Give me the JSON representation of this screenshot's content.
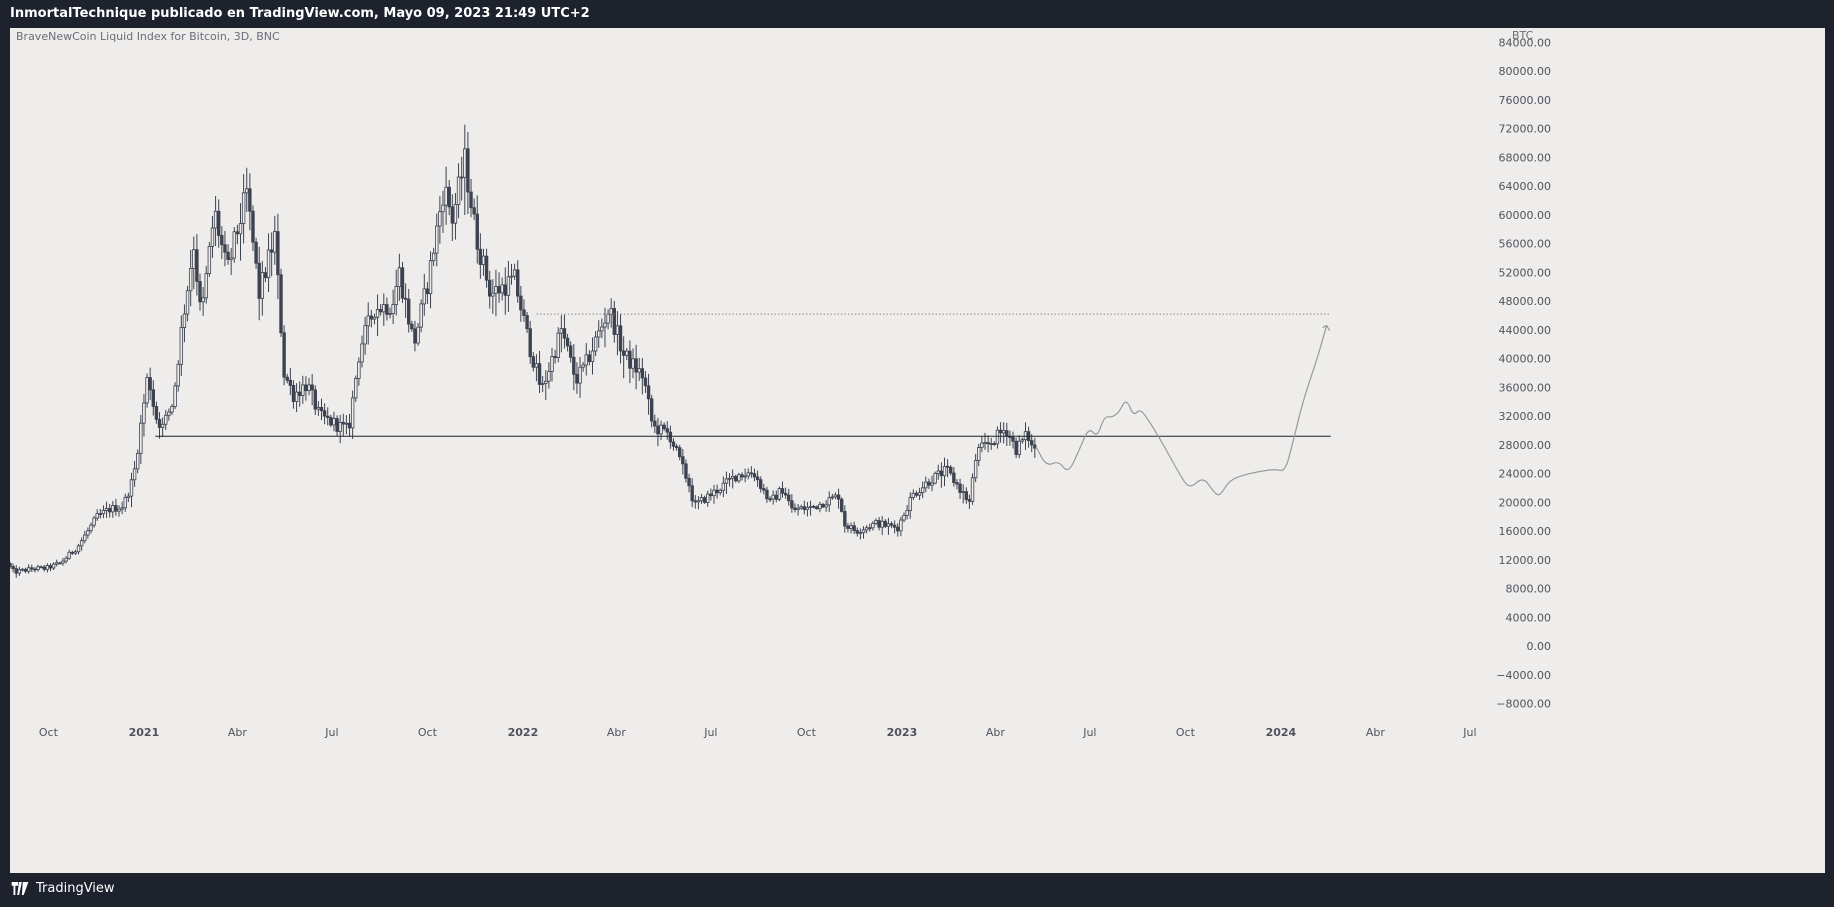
{
  "header": {
    "published_text": "InmortalTechnique publicado en TradingView.com, Mayo 09, 2023 21:49 UTC+2"
  },
  "footer": {
    "brand_label": "TradingView"
  },
  "colors": {
    "candle": "#3d4250",
    "projection": "#9a9a9a",
    "level_line": "#1e222d",
    "target_line": "#8a8a8a",
    "background": "#eeedeb"
  },
  "chart_data": {
    "type": "candlestick",
    "title": "BraveNewCoin Liquid Index for Bitcoin, 3D, BNC",
    "currency": "BTC",
    "y_ticks": [
      84000,
      80000,
      76000,
      72000,
      68000,
      64000,
      60000,
      56000,
      52000,
      48000,
      44000,
      40000,
      36000,
      32000,
      28000,
      24000,
      20000,
      16000,
      12000,
      8000,
      4000,
      0,
      -4000,
      -8000
    ],
    "y_tick_labels": [
      "84000.00",
      "80000.00",
      "76000.00",
      "72000.00",
      "68000.00",
      "64000.00",
      "60000.00",
      "56000.00",
      "52000.00",
      "48000.00",
      "44000.00",
      "40000.00",
      "36000.00",
      "32000.00",
      "28000.00",
      "24000.00",
      "20000.00",
      "16000.00",
      "12000.00",
      "8000.00",
      "4000.00",
      "0.00",
      "−4000.00",
      "−8000.00"
    ],
    "ylim": [
      -10000,
      86000
    ],
    "x_ticks": [
      {
        "label": "Oct",
        "date": "2020-10-01",
        "bold": false
      },
      {
        "label": "2021",
        "date": "2021-01-01",
        "bold": true
      },
      {
        "label": "Abr",
        "date": "2021-04-01",
        "bold": false
      },
      {
        "label": "Jul",
        "date": "2021-07-01",
        "bold": false
      },
      {
        "label": "Oct",
        "date": "2021-10-01",
        "bold": false
      },
      {
        "label": "2022",
        "date": "2022-01-01",
        "bold": true
      },
      {
        "label": "Abr",
        "date": "2022-04-01",
        "bold": false
      },
      {
        "label": "Jul",
        "date": "2022-07-01",
        "bold": false
      },
      {
        "label": "Oct",
        "date": "2022-10-01",
        "bold": false
      },
      {
        "label": "2023",
        "date": "2023-01-01",
        "bold": true
      },
      {
        "label": "Abr",
        "date": "2023-04-01",
        "bold": false
      },
      {
        "label": "Jul",
        "date": "2023-07-01",
        "bold": false
      },
      {
        "label": "Oct",
        "date": "2023-10-01",
        "bold": false
      },
      {
        "label": "2024",
        "date": "2024-01-01",
        "bold": true
      },
      {
        "label": "Abr",
        "date": "2024-04-01",
        "bold": false
      },
      {
        "label": "Jul",
        "date": "2024-07-01",
        "bold": false
      }
    ],
    "xlim": [
      "2020-08-25",
      "2024-07-30"
    ],
    "price_path": [
      [
        "2020-08-25",
        11500
      ],
      [
        "2020-09-01",
        10300
      ],
      [
        "2020-09-20",
        10800
      ],
      [
        "2020-10-01",
        10800
      ],
      [
        "2020-10-15",
        11500
      ],
      [
        "2020-11-01",
        13800
      ],
      [
        "2020-11-20",
        18000
      ],
      [
        "2020-12-01",
        19000
      ],
      [
        "2020-12-15",
        19500
      ],
      [
        "2020-12-25",
        23500
      ],
      [
        "2021-01-08",
        38000
      ],
      [
        "2021-01-15",
        32000
      ],
      [
        "2021-01-22",
        30500
      ],
      [
        "2021-02-01",
        34000
      ],
      [
        "2021-02-10",
        45000
      ],
      [
        "2021-02-21",
        56000
      ],
      [
        "2021-02-28",
        45500
      ],
      [
        "2021-03-13",
        60500
      ],
      [
        "2021-03-25",
        52000
      ],
      [
        "2021-04-13",
        63000
      ],
      [
        "2021-04-25",
        49000
      ],
      [
        "2021-05-10",
        57000
      ],
      [
        "2021-05-19",
        38000
      ],
      [
        "2021-05-28",
        35000
      ],
      [
        "2021-06-10",
        36500
      ],
      [
        "2021-06-22",
        32000
      ],
      [
        "2021-07-20",
        30000
      ],
      [
        "2021-07-31",
        41500
      ],
      [
        "2021-08-14",
        47000
      ],
      [
        "2021-08-31",
        47500
      ],
      [
        "2021-09-07",
        52000
      ],
      [
        "2021-09-21",
        42000
      ],
      [
        "2021-10-05",
        51000
      ],
      [
        "2021-10-20",
        64000
      ],
      [
        "2021-10-28",
        59500
      ],
      [
        "2021-11-09",
        67500
      ],
      [
        "2021-11-20",
        57000
      ],
      [
        "2021-12-04",
        49000
      ],
      [
        "2021-12-27",
        51000
      ],
      [
        "2022-01-10",
        42000
      ],
      [
        "2022-01-22",
        35500
      ],
      [
        "2022-02-10",
        44000
      ],
      [
        "2022-02-24",
        37000
      ],
      [
        "2022-03-05",
        39000
      ],
      [
        "2022-03-28",
        47000
      ],
      [
        "2022-04-11",
        40500
      ],
      [
        "2022-04-30",
        37500
      ],
      [
        "2022-05-09",
        30500
      ],
      [
        "2022-05-25",
        29500
      ],
      [
        "2022-06-13",
        22500
      ],
      [
        "2022-06-18",
        19500
      ],
      [
        "2022-07-08",
        21500
      ],
      [
        "2022-07-29",
        23800
      ],
      [
        "2022-08-14",
        24200
      ],
      [
        "2022-08-30",
        20000
      ],
      [
        "2022-09-12",
        22000
      ],
      [
        "2022-09-20",
        19000
      ],
      [
        "2022-10-10",
        19300
      ],
      [
        "2022-11-05",
        21000
      ],
      [
        "2022-11-09",
        17000
      ],
      [
        "2022-11-21",
        16000
      ],
      [
        "2022-12-10",
        17100
      ],
      [
        "2022-12-31",
        16500
      ],
      [
        "2023-01-14",
        21000
      ],
      [
        "2023-01-31",
        23100
      ],
      [
        "2023-02-16",
        24500
      ],
      [
        "2023-03-10",
        20000
      ],
      [
        "2023-03-17",
        27000
      ],
      [
        "2023-03-31",
        28400
      ],
      [
        "2023-04-14",
        30300
      ],
      [
        "2023-04-24",
        27400
      ],
      [
        "2023-05-05",
        29500
      ],
      [
        "2023-05-09",
        27700
      ]
    ],
    "projection_path": [
      [
        "2023-05-10",
        27800
      ],
      [
        "2023-05-20",
        25000
      ],
      [
        "2023-06-01",
        25800
      ],
      [
        "2023-06-10",
        24000
      ],
      [
        "2023-06-20",
        27000
      ],
      [
        "2023-06-30",
        30500
      ],
      [
        "2023-07-08",
        29000
      ],
      [
        "2023-07-15",
        32000
      ],
      [
        "2023-07-22",
        31800
      ],
      [
        "2023-07-29",
        32500
      ],
      [
        "2023-08-05",
        34500
      ],
      [
        "2023-08-12",
        32000
      ],
      [
        "2023-08-18",
        33000
      ],
      [
        "2023-08-25",
        31800
      ],
      [
        "2023-09-10",
        28000
      ],
      [
        "2023-09-25",
        24000
      ],
      [
        "2023-10-05",
        21800
      ],
      [
        "2023-10-18",
        23600
      ],
      [
        "2023-10-28",
        21500
      ],
      [
        "2023-11-03",
        20800
      ],
      [
        "2023-11-12",
        23000
      ],
      [
        "2023-11-25",
        23800
      ],
      [
        "2023-12-15",
        24400
      ],
      [
        "2023-12-27",
        24600
      ],
      [
        "2024-01-05",
        24300
      ],
      [
        "2024-01-12",
        28000
      ],
      [
        "2024-01-22",
        34000
      ],
      [
        "2024-02-05",
        40000
      ],
      [
        "2024-02-14",
        44600
      ]
    ],
    "support_level": {
      "value": 29200,
      "from": "2021-01-12",
      "to": "2024-02-18"
    },
    "target_level": {
      "value": 46200,
      "from": "2022-01-14",
      "to": "2024-02-18"
    }
  }
}
